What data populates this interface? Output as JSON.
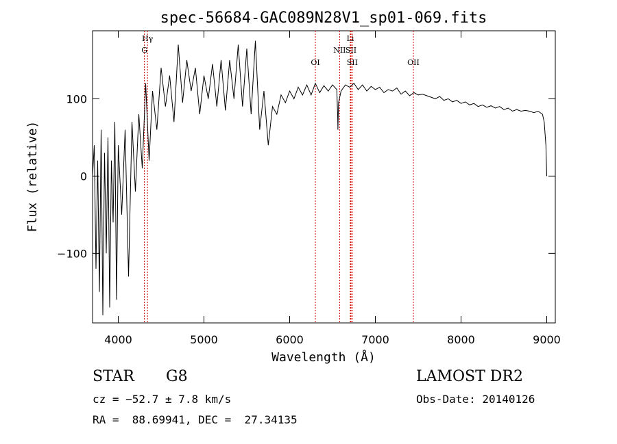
{
  "chart_data": {
    "type": "line",
    "title": "spec-56684-GAC089N28V1_sp01-069.fits",
    "xlabel": "Wavelength (Å)",
    "ylabel": "Flux (relative)",
    "xlim": [
      3700,
      9100
    ],
    "ylim": [
      -190,
      188
    ],
    "x_ticks": [
      4000,
      5000,
      6000,
      7000,
      8000,
      9000
    ],
    "x_tick_labels": [
      "4000",
      "5000",
      "6000",
      "7000",
      "8000",
      "9000"
    ],
    "y_ticks": [
      -100,
      0,
      100
    ],
    "y_tick_labels": [
      "−100",
      "0",
      "100"
    ],
    "line_color": "#000000",
    "marker_color": "#cc0000",
    "series": [
      {
        "x": [
          3700,
          3720,
          3740,
          3760,
          3780,
          3800,
          3820,
          3840,
          3860,
          3880,
          3900,
          3920,
          3940,
          3960,
          3980,
          4000,
          4040,
          4080,
          4120,
          4160,
          4200,
          4240,
          4280,
          4320,
          4360,
          4400,
          4450,
          4500,
          4550,
          4600,
          4650,
          4700,
          4750,
          4800,
          4850,
          4900,
          4950,
          5000,
          5050,
          5100,
          5150,
          5200,
          5250,
          5300,
          5350,
          5400,
          5450,
          5500,
          5550,
          5600,
          5650,
          5700,
          5750,
          5800,
          5850,
          5900,
          5950,
          6000,
          6050,
          6100,
          6150,
          6200,
          6250,
          6300,
          6350,
          6400,
          6450,
          6500,
          6550,
          6560,
          6563,
          6570,
          6600,
          6650,
          6700,
          6750,
          6800,
          6850,
          6900,
          6950,
          7000,
          7050,
          7100,
          7150,
          7200,
          7250,
          7300,
          7350,
          7400,
          7450,
          7500,
          7550,
          7600,
          7650,
          7700,
          7750,
          7800,
          7850,
          7900,
          7950,
          8000,
          8050,
          8100,
          8150,
          8200,
          8250,
          8300,
          8350,
          8400,
          8450,
          8500,
          8550,
          8600,
          8650,
          8700,
          8750,
          8800,
          8850,
          8900,
          8950,
          8970,
          8990,
          9000
        ],
        "y": [
          0,
          40,
          -120,
          20,
          -150,
          60,
          -180,
          30,
          -100,
          50,
          -170,
          20,
          -60,
          70,
          -160,
          40,
          -50,
          60,
          -130,
          70,
          -20,
          80,
          10,
          120,
          20,
          110,
          60,
          140,
          90,
          130,
          70,
          170,
          95,
          150,
          110,
          140,
          80,
          130,
          100,
          145,
          90,
          150,
          85,
          150,
          100,
          170,
          90,
          165,
          80,
          175,
          60,
          110,
          40,
          90,
          80,
          105,
          95,
          110,
          100,
          115,
          105,
          118,
          105,
          120,
          108,
          117,
          110,
          118,
          112,
          80,
          60,
          95,
          110,
          118,
          115,
          120,
          112,
          118,
          110,
          116,
          112,
          115,
          108,
          112,
          110,
          114,
          106,
          110,
          104,
          108,
          105,
          106,
          104,
          102,
          100,
          103,
          98,
          100,
          96,
          98,
          94,
          96,
          92,
          94,
          90,
          92,
          89,
          91,
          88,
          90,
          86,
          88,
          84,
          86,
          84,
          85,
          84,
          82,
          84,
          80,
          70,
          40,
          0
        ]
      }
    ],
    "line_markers": [
      {
        "x": 4305,
        "label": "G",
        "row": 2
      },
      {
        "x": 4341,
        "label": "Hγ",
        "row": 1
      },
      {
        "x": 6300,
        "label": "OI",
        "row": 4
      },
      {
        "x": 6583,
        "label": "NII",
        "row": 3
      },
      {
        "x": 6708,
        "label": "Li",
        "row": 1
      },
      {
        "x": 6716,
        "label": "SII",
        "row": 3
      },
      {
        "x": 6731,
        "label": "SII",
        "row": 4
      },
      {
        "x": 7444,
        "label": "OII",
        "row": 4
      }
    ]
  },
  "info": {
    "object_class": "STAR",
    "subclass": "G8",
    "survey": "LAMOST DR2",
    "cz": "cz = −52.7 ± 7.8 km/s",
    "obs_date": "Obs-Date: 20140126",
    "coords": "RA =  88.69941, DEC =  27.34135"
  }
}
